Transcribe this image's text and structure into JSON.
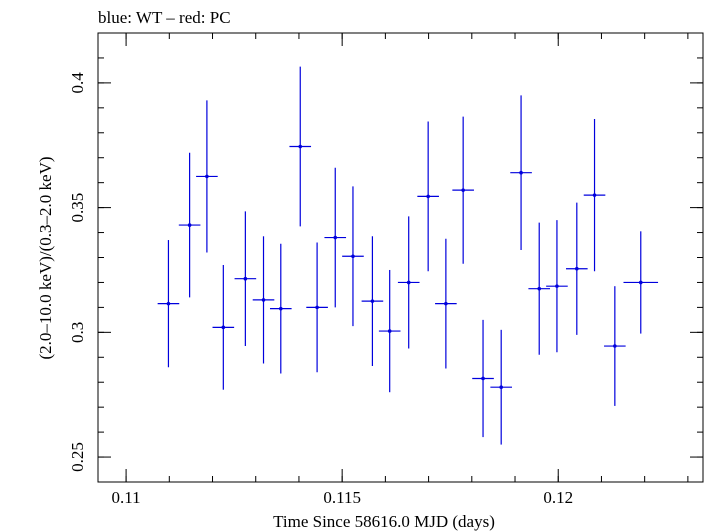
{
  "chart_data": {
    "type": "scatter",
    "title": "blue: WT – red: PC",
    "xlabel": "Time Since 58616.0 MJD (days)",
    "ylabel": "(2.0–10.0 keV)/(0.3–2.0 keV)",
    "xlim": [
      0.10935,
      0.12335
    ],
    "ylim": [
      0.24,
      0.42
    ],
    "x_ticks": [
      {
        "value": 0.11,
        "label": "0.11"
      },
      {
        "value": 0.115,
        "label": "0.115"
      },
      {
        "value": 0.12,
        "label": "0.12"
      }
    ],
    "y_ticks": [
      {
        "value": 0.25,
        "label": "0.25"
      },
      {
        "value": 0.3,
        "label": "0.3"
      },
      {
        "value": 0.35,
        "label": "0.35"
      },
      {
        "value": 0.4,
        "label": "0.4"
      }
    ],
    "x_minor_step": 0.001,
    "y_minor_step": 0.01,
    "series": [
      {
        "name": "WT",
        "color": "#0000dd",
        "points": [
          {
            "x": 0.11098,
            "y": 0.3115,
            "xerr": 0.00025,
            "yerr": 0.0255
          },
          {
            "x": 0.11147,
            "y": 0.343,
            "xerr": 0.00025,
            "yerr": 0.029
          },
          {
            "x": 0.11187,
            "y": 0.3625,
            "xerr": 0.00025,
            "yerr": 0.0305
          },
          {
            "x": 0.11225,
            "y": 0.302,
            "xerr": 0.00025,
            "yerr": 0.025
          },
          {
            "x": 0.11276,
            "y": 0.3215,
            "xerr": 0.00025,
            "yerr": 0.027
          },
          {
            "x": 0.11318,
            "y": 0.313,
            "xerr": 0.00025,
            "yerr": 0.0255
          },
          {
            "x": 0.11358,
            "y": 0.3095,
            "xerr": 0.00025,
            "yerr": 0.026
          },
          {
            "x": 0.11403,
            "y": 0.3745,
            "xerr": 0.00025,
            "yerr": 0.032
          },
          {
            "x": 0.11442,
            "y": 0.31,
            "xerr": 0.00025,
            "yerr": 0.026
          },
          {
            "x": 0.11484,
            "y": 0.338,
            "xerr": 0.00025,
            "yerr": 0.028
          },
          {
            "x": 0.11525,
            "y": 0.3305,
            "xerr": 0.00025,
            "yerr": 0.028
          },
          {
            "x": 0.1157,
            "y": 0.3125,
            "xerr": 0.00025,
            "yerr": 0.026
          },
          {
            "x": 0.1161,
            "y": 0.3005,
            "xerr": 0.00025,
            "yerr": 0.0245
          },
          {
            "x": 0.11654,
            "y": 0.32,
            "xerr": 0.00025,
            "yerr": 0.0265
          },
          {
            "x": 0.11699,
            "y": 0.3545,
            "xerr": 0.00025,
            "yerr": 0.03
          },
          {
            "x": 0.1174,
            "y": 0.3115,
            "xerr": 0.00025,
            "yerr": 0.026
          },
          {
            "x": 0.1178,
            "y": 0.357,
            "xerr": 0.00025,
            "yerr": 0.0295
          },
          {
            "x": 0.11826,
            "y": 0.2815,
            "xerr": 0.00025,
            "yerr": 0.0235
          },
          {
            "x": 0.11868,
            "y": 0.278,
            "xerr": 0.00025,
            "yerr": 0.023
          },
          {
            "x": 0.11914,
            "y": 0.364,
            "xerr": 0.00025,
            "yerr": 0.031
          },
          {
            "x": 0.11956,
            "y": 0.3175,
            "xerr": 0.00025,
            "yerr": 0.0265
          },
          {
            "x": 0.11997,
            "y": 0.3185,
            "xerr": 0.00025,
            "yerr": 0.0265
          },
          {
            "x": 0.12043,
            "y": 0.3255,
            "xerr": 0.00025,
            "yerr": 0.0265
          },
          {
            "x": 0.12084,
            "y": 0.355,
            "xerr": 0.00025,
            "yerr": 0.0305
          },
          {
            "x": 0.12131,
            "y": 0.2945,
            "xerr": 0.00025,
            "yerr": 0.024
          },
          {
            "x": 0.12191,
            "y": 0.32,
            "xerr": 0.0004,
            "yerr": 0.0205
          }
        ]
      }
    ]
  }
}
